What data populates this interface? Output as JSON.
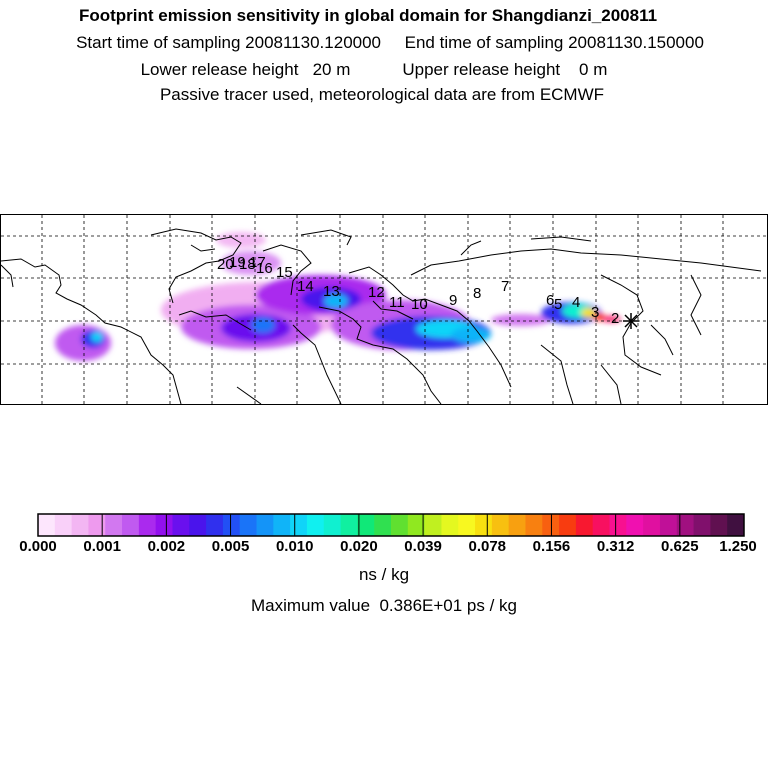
{
  "header": {
    "title": "Footprint emission sensitivity in global domain for Shangdianzi_200811",
    "sampling": "Start time of sampling 20081130.120000     End time of sampling 20081130.150000",
    "release": "Lower release height   20 m           Upper release height    0 m",
    "tracer": "Passive tracer used, meteorological data are from ECMWF"
  },
  "map": {
    "station_marker": "star-icon",
    "trajectory_labels": [
      "2",
      "3",
      "4",
      "5",
      "6",
      "7",
      "8",
      "9",
      "10",
      "11",
      "12",
      "13",
      "14",
      "15",
      "16",
      "17",
      "18",
      "19",
      "20"
    ]
  },
  "colorbar": {
    "colors": [
      "#fde6fd",
      "#f9d0f9",
      "#f3b6f3",
      "#ee9aee",
      "#d278f0",
      "#c05af0",
      "#aa2aee",
      "#9210ee",
      "#6a10ee",
      "#4a14ec",
      "#3030ee",
      "#2250f5",
      "#1a74f8",
      "#1494f8",
      "#10b4f8",
      "#10d4f8",
      "#10f0f0",
      "#10f0d0",
      "#10f0a0",
      "#10e878",
      "#30e050",
      "#60e030",
      "#90e820",
      "#c0f020",
      "#e4f820",
      "#f8f820",
      "#f8e010",
      "#f8c010",
      "#f8a010",
      "#f88010",
      "#f86010",
      "#f83c10",
      "#f81830",
      "#f81060",
      "#f81090",
      "#f010b0",
      "#e010a0",
      "#c01098",
      "#a01080",
      "#80106c",
      "#601050",
      "#401040"
    ],
    "ticks": [
      "0.000",
      "0.001",
      "0.002",
      "0.005",
      "0.010",
      "0.020",
      "0.039",
      "0.078",
      "0.156",
      "0.312",
      "0.625",
      "1.250"
    ],
    "unit": "ns / kg"
  },
  "max_value": "Maximum value  0.386E+01 ps / kg"
}
